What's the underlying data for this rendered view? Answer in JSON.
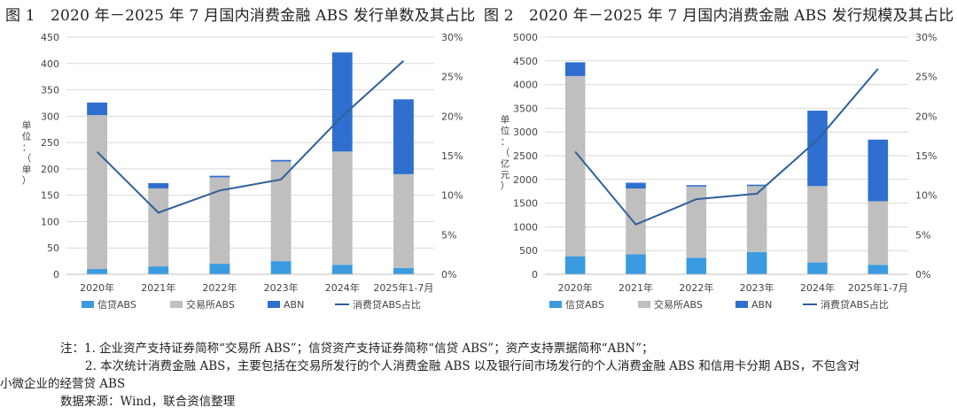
{
  "colors": {
    "xindai": "#3a9be0",
    "jiaoyisuo": "#bfbfbf",
    "abn": "#2e6fcf",
    "line": "#2f5f99",
    "grid": "#d9d9d9"
  },
  "legend": {
    "xindai": "信贷ABS",
    "jiaoyisuo": "交易所ABS",
    "abn": "ABN",
    "line": "消费贷ABS占比"
  },
  "figures": {
    "left": {
      "title": "图 1　2020 年－2025 年 7 月国内消费金融 ABS 发行单数及其占比",
      "ylabel": "单位：（单）"
    },
    "right": {
      "title": "图 2　2020 年－2025 年 7 月国内消费金融 ABS 发行规模及其占比",
      "ylabel": "单位：（亿元）"
    }
  },
  "chart_data": [
    {
      "type": "bar",
      "stacked": true,
      "title": "图 1　2020 年－2025 年 7 月国内消费金融 ABS 发行单数及其占比",
      "ylabel": "单位：（单）",
      "categories": [
        "2020年",
        "2021年",
        "2022年",
        "2023年",
        "2024年",
        "2025年1-7月"
      ],
      "ylim": [
        0,
        450
      ],
      "yticks": [
        "0",
        "50",
        "100",
        "150",
        "200",
        "250",
        "300",
        "350",
        "400",
        "450"
      ],
      "y2lim": [
        0,
        30
      ],
      "y2ticks": [
        "0%",
        "5%",
        "10%",
        "15%",
        "20%",
        "25%",
        "30%"
      ],
      "series": [
        {
          "name": "信贷ABS",
          "values": [
            10,
            15,
            20,
            25,
            18,
            12
          ]
        },
        {
          "name": "交易所ABS",
          "values": [
            292,
            148,
            164,
            189,
            215,
            178
          ]
        },
        {
          "name": "ABN",
          "values": [
            24,
            10,
            3,
            3,
            188,
            142
          ]
        }
      ],
      "line": {
        "name": "消费贷ABS占比",
        "values": [
          15.5,
          7.8,
          10.6,
          12.0,
          20.0,
          27.0
        ]
      }
    },
    {
      "type": "bar",
      "stacked": true,
      "title": "图 2　2020 年－2025 年 7 月国内消费金融 ABS 发行规模及其占比",
      "ylabel": "单位：（亿元）",
      "categories": [
        "2020年",
        "2021年",
        "2022年",
        "2023年",
        "2024年",
        "2025年1-7月"
      ],
      "ylim": [
        0,
        5000
      ],
      "yticks": [
        "0",
        "500",
        "1000",
        "1500",
        "2000",
        "2500",
        "3000",
        "3500",
        "4000",
        "4500",
        "5000"
      ],
      "y2lim": [
        0,
        30
      ],
      "y2ticks": [
        "0%",
        "5%",
        "10%",
        "15%",
        "20%",
        "25%",
        "30%"
      ],
      "series": [
        {
          "name": "信贷ABS",
          "values": [
            380,
            420,
            350,
            470,
            250,
            200
          ]
        },
        {
          "name": "交易所ABS",
          "values": [
            3800,
            1390,
            1500,
            1390,
            1610,
            1340
          ]
        },
        {
          "name": "ABN",
          "values": [
            290,
            120,
            30,
            30,
            1590,
            1300
          ]
        }
      ],
      "line": {
        "name": "消费贷ABS占比",
        "values": [
          15.5,
          6.3,
          9.5,
          10.2,
          17.0,
          26.0
        ]
      }
    }
  ],
  "notes": {
    "line1": "注：1.  企业资产支持证券简称“交易所 ABS”；信贷资产支持证券简称“信贷 ABS”；资产支持票据简称“ABN”；",
    "line2": "2.  本次统计消费金融 ABS，主要包括在交易所发行的个人消费金融 ABS 以及银行间市场发行的个人消费金融 ABS 和信用卡分期 ABS，不包含对",
    "line3": "小微企业的经营贷 ABS",
    "source": "数据来源：Wind，联合资信整理"
  }
}
